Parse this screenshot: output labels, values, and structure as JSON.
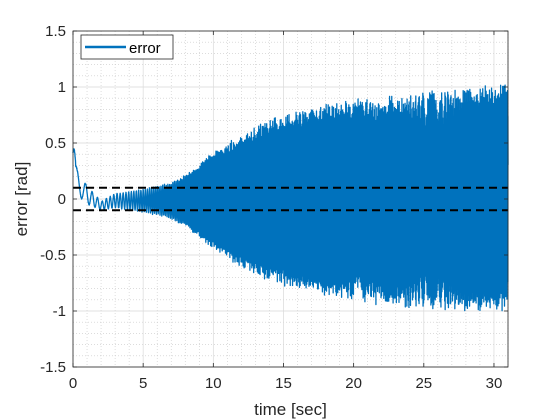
{
  "chart_data": {
    "type": "line",
    "xlabel": "time [sec]",
    "ylabel": "error [rad]",
    "xlim": [
      0,
      31
    ],
    "ylim": [
      -1.5,
      1.5
    ],
    "x_ticks": [
      0,
      5,
      10,
      15,
      20,
      25,
      30
    ],
    "y_ticks": [
      -1.5,
      -1,
      -0.5,
      0,
      0.5,
      1,
      1.5
    ],
    "grid": true,
    "minor_grid": true,
    "legend_position": "top-left",
    "series": [
      {
        "name": "error",
        "color": "#0072BD",
        "description_points": "oscillating error whose envelope grows from ~0.05 to ~1.0 rad",
        "envelope": {
          "t": [
            0,
            0.2,
            1,
            2,
            3,
            4,
            5,
            6,
            7,
            8,
            10,
            12,
            14,
            16,
            18,
            20,
            22,
            24,
            26,
            28,
            30,
            31
          ],
          "upper": [
            0.82,
            0.3,
            0.12,
            -0.02,
            0.05,
            0.07,
            0.09,
            0.12,
            0.15,
            0.22,
            0.42,
            0.58,
            0.72,
            0.8,
            0.86,
            0.9,
            0.92,
            0.95,
            0.98,
            1.0,
            1.03,
            1.05
          ],
          "lower": [
            0.0,
            0.05,
            -0.05,
            -0.1,
            -0.08,
            -0.1,
            -0.12,
            -0.15,
            -0.18,
            -0.25,
            -0.45,
            -0.62,
            -0.74,
            -0.82,
            -0.88,
            -0.92,
            -0.95,
            -0.98,
            -1.0,
            -1.02,
            -1.03,
            -1.02
          ]
        }
      }
    ],
    "reference_lines": [
      {
        "y": 0.1,
        "style": "dashed",
        "color": "#000000"
      },
      {
        "y": -0.1,
        "style": "dashed",
        "color": "#000000"
      }
    ]
  }
}
